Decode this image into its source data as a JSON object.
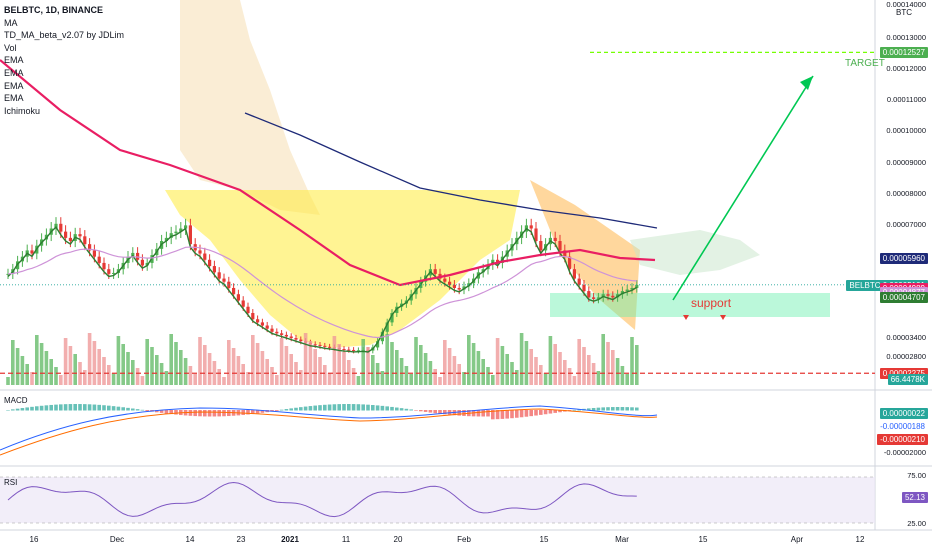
{
  "header": {
    "symbol_line": "BELBTC, 1D, BINANCE",
    "indicators": [
      "MA",
      "TD_MA_beta_v2.07 by JDLim",
      "Vol",
      "EMA",
      "EMA",
      "EMA",
      "EMA",
      "Ichimoku"
    ],
    "unit": "BTC"
  },
  "annotations": {
    "target": "TARGET",
    "support": "support"
  },
  "price_axis": {
    "ticks": [
      "0.00013000",
      "0.00012000",
      "0.00011000",
      "0.00010000",
      "0.00009000",
      "0.00008000",
      "0.00007000",
      "0.00003400",
      "0.00002800"
    ],
    "top_partial": "0.00014000"
  },
  "price_labels": [
    {
      "text": "0.00012527",
      "color": "#4caf50",
      "y": 0.00012527
    },
    {
      "text": "0.00005960",
      "color": "#1e2a78",
      "y": 5.96e-05
    },
    {
      "text": "BELBTC   0.00005101",
      "color": "#26a69a",
      "y": 5.101e-05
    },
    {
      "text": "22:22:32",
      "color": "#26a69a",
      "y": 4.88e-05
    },
    {
      "text": "0.00004989",
      "color": "#e91e63",
      "y": 4.989e-05
    },
    {
      "text": "0.00004877",
      "color": "#ce93d8",
      "y": 4.877e-05
    },
    {
      "text": "0.00004707",
      "color": "#2e7d32",
      "y": 4.707e-05
    },
    {
      "text": "0.00002275",
      "color": "#e53935",
      "y": 2.275e-05
    },
    {
      "text": "66.4478K",
      "color": "#26a69a",
      "y": 2.1e-05
    }
  ],
  "macd": {
    "title": "MACD",
    "labels": [
      {
        "text": "0.00000022",
        "color": "#26a69a"
      },
      {
        "text": "-0.00000188",
        "color": "#2962ff"
      },
      {
        "text": "-0.00000210",
        "color": "#e53935"
      }
    ],
    "ticks": [
      "-0.00002000"
    ]
  },
  "rsi": {
    "title": "RSI",
    "value_label": "52.13",
    "ticks": [
      "75.00",
      "25.00"
    ]
  },
  "x_axis": [
    "16",
    "Dec",
    "14",
    "23",
    "2021",
    "11",
    "20",
    "Feb",
    "15",
    "Mar",
    "15",
    "Apr",
    "12"
  ],
  "chart_data": {
    "type": "candlestick",
    "title": "BELBTC, 1D, BINANCE",
    "ylabel": "BTC",
    "ylim": [
      1.9e-05,
      0.000142
    ],
    "close_series": [
      5.45e-05,
      5.6e-05,
      5.85e-05,
      6e-05,
      6.2e-05,
      6.1e-05,
      6.35e-05,
      6.55e-05,
      6.7e-05,
      6.9e-05,
      7.05e-05,
      6.8e-05,
      6.6e-05,
      6.5e-05,
      6.72e-05,
      6.65e-05,
      6.4e-05,
      6.2e-05,
      6e-05,
      5.8e-05,
      5.6e-05,
      5.45e-05,
      5.48e-05,
      5.6e-05,
      5.8e-05,
      6e-05,
      6.12e-05,
      5.9e-05,
      5.72e-05,
      5.8e-05,
      6.05e-05,
      6.25e-05,
      6.5e-05,
      6.6e-05,
      6.75e-05,
      6.8e-05,
      6.9e-05,
      7e-05,
      6.4e-05,
      6.2e-05,
      6.1e-05,
      5.9e-05,
      5.7e-05,
      5.5e-05,
      5.3e-05,
      5.2e-05,
      5e-05,
      4.8e-05,
      4.6e-05,
      4.4e-05,
      4.2e-05,
      4e-05,
      3.9e-05,
      3.8e-05,
      3.7e-05,
      3.6e-05,
      3.55e-05,
      3.5e-05,
      3.45e-05,
      3.4e-05,
      3.35e-05,
      3.3e-05,
      3.25e-05,
      3.2e-05,
      3.18e-05,
      3.15e-05,
      3.12e-05,
      3.1e-05,
      3.08e-05,
      3.05e-05,
      3.03e-05,
      3.02e-05,
      3e-05,
      3.01e-05,
      3.02e-05,
      3e-05,
      3.1e-05,
      3.3e-05,
      3.6e-05,
      3.9e-05,
      4.2e-05,
      4.4e-05,
      4.5e-05,
      4.6e-05,
      4.8e-05,
      5e-05,
      5.2e-05,
      5.4e-05,
      5.6e-05,
      5.45e-05,
      5.3e-05,
      5.2e-05,
      5.1e-05,
      5e-05,
      4.95e-05,
      5.05e-05,
      5.15e-05,
      5.3e-05,
      5.5e-05,
      5.6e-05,
      5.75e-05,
      5.9e-05,
      5.8e-05,
      6e-05,
      6.2e-05,
      6.4e-05,
      6.6e-05,
      6.8e-05,
      7e-05,
      6.9e-05,
      6.5e-05,
      6.2e-05,
      6.4e-05,
      6.6e-05,
      6.5e-05,
      6.2e-05,
      6e-05,
      5.6e-05,
      5.3e-05,
      5.1e-05,
      4.9e-05,
      4.7e-05,
      4.65e-05,
      4.7e-05,
      4.8e-05,
      4.75e-05,
      4.7e-05,
      4.8e-05,
      4.9e-05,
      4.95e-05,
      5e-05,
      5.1e-05
    ],
    "levels": {
      "target": 0.00012527,
      "resistance_ma": 5.96e-05,
      "last": 5.101e-05,
      "support_top": 4.65e-05,
      "support_bottom": 4.18e-05,
      "red_line": 2.275e-05
    },
    "rsi": {
      "ylim": [
        25,
        75
      ],
      "last": 52.13
    }
  }
}
